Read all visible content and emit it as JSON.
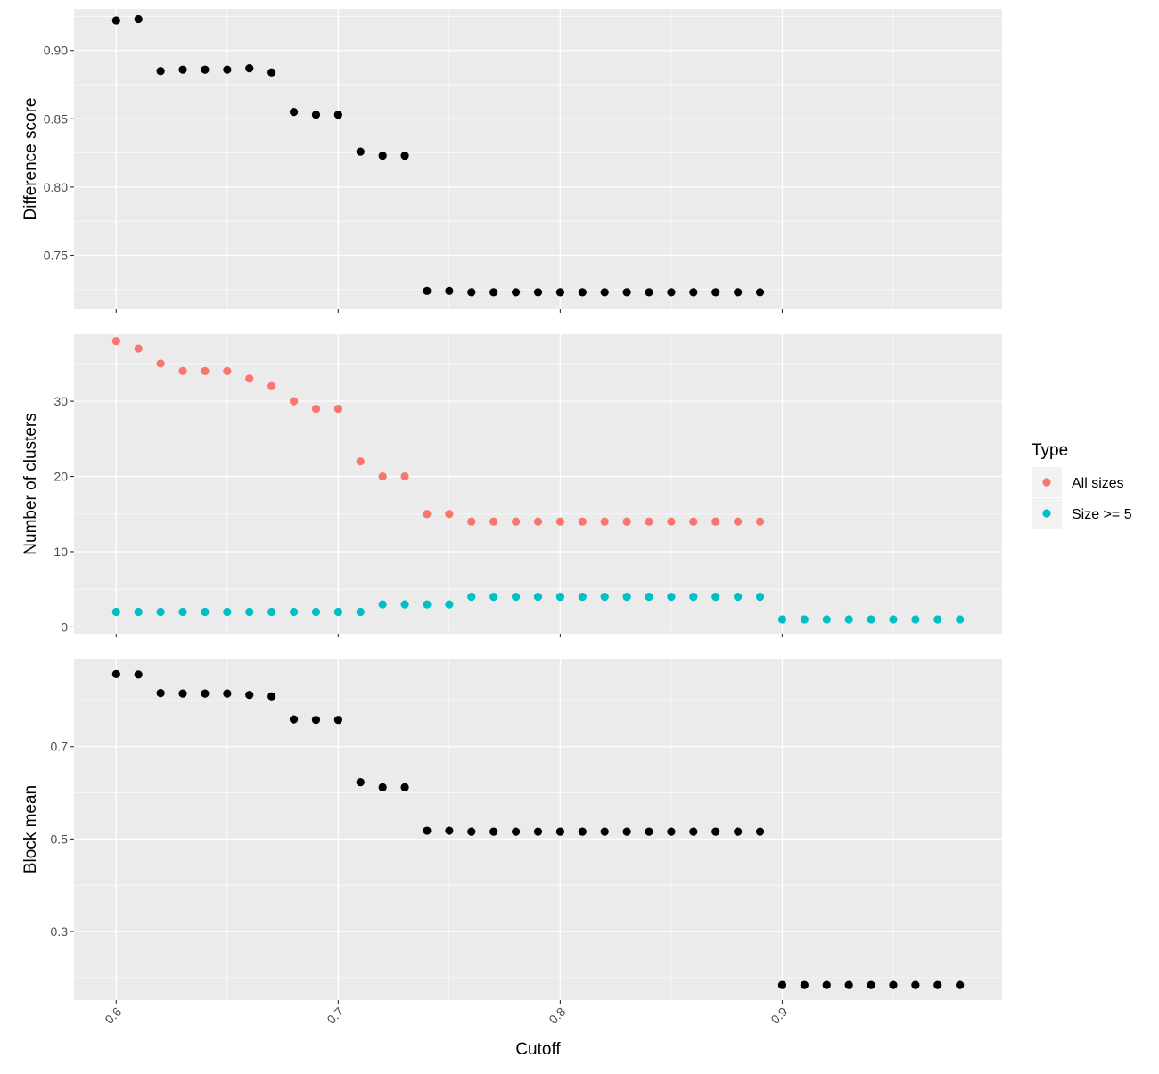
{
  "chart_data": [
    {
      "type": "scatter",
      "panel": "difference",
      "ylabel": "Difference score",
      "yticks": [
        0.75,
        0.8,
        0.85,
        0.9
      ],
      "ytick_labels": [
        "0.75",
        "0.80",
        "0.85",
        "0.90"
      ],
      "ylim": [
        0.7105,
        0.9305
      ],
      "grid": true,
      "series": [
        {
          "color": "#000000",
          "x": [
            0.6,
            0.61,
            0.62,
            0.63,
            0.64,
            0.65,
            0.66,
            0.67,
            0.68,
            0.69,
            0.7,
            0.71,
            0.72,
            0.73,
            0.74,
            0.75,
            0.76,
            0.77,
            0.78,
            0.79,
            0.8,
            0.81,
            0.82,
            0.83,
            0.84,
            0.85,
            0.86,
            0.87,
            0.88,
            0.89
          ],
          "y": [
            0.922,
            0.923,
            0.885,
            0.886,
            0.886,
            0.886,
            0.887,
            0.884,
            0.855,
            0.853,
            0.853,
            0.826,
            0.823,
            0.823,
            0.724,
            0.724,
            0.723,
            0.723,
            0.723,
            0.723,
            0.723,
            0.723,
            0.723,
            0.723,
            0.723,
            0.723,
            0.723,
            0.723,
            0.723,
            0.723
          ]
        }
      ]
    },
    {
      "type": "scatter",
      "panel": "clusters",
      "ylabel": "Number of clusters",
      "yticks": [
        0,
        10,
        20,
        30
      ],
      "ytick_labels": [
        "0",
        "10",
        "20",
        "30"
      ],
      "ylim": [
        -0.9,
        38.9
      ],
      "grid": true,
      "legend": {
        "title": "Type",
        "position": "right"
      },
      "series": [
        {
          "name": "All sizes",
          "color": "#F8766D",
          "x": [
            0.6,
            0.61,
            0.62,
            0.63,
            0.64,
            0.65,
            0.66,
            0.67,
            0.68,
            0.69,
            0.7,
            0.71,
            0.72,
            0.73,
            0.74,
            0.75,
            0.76,
            0.77,
            0.78,
            0.79,
            0.8,
            0.81,
            0.82,
            0.83,
            0.84,
            0.85,
            0.86,
            0.87,
            0.88,
            0.89
          ],
          "y": [
            38,
            37,
            35,
            34,
            34,
            34,
            33,
            32,
            30,
            29,
            29,
            22,
            20,
            20,
            15,
            15,
            14,
            14,
            14,
            14,
            14,
            14,
            14,
            14,
            14,
            14,
            14,
            14,
            14,
            14
          ]
        },
        {
          "name": "Size >= 5",
          "color": "#00BFC4",
          "x": [
            0.6,
            0.61,
            0.62,
            0.63,
            0.64,
            0.65,
            0.66,
            0.67,
            0.68,
            0.69,
            0.7,
            0.71,
            0.72,
            0.73,
            0.74,
            0.75,
            0.76,
            0.77,
            0.78,
            0.79,
            0.8,
            0.81,
            0.82,
            0.83,
            0.84,
            0.85,
            0.86,
            0.87,
            0.88,
            0.89,
            0.9,
            0.91,
            0.92,
            0.93,
            0.94,
            0.95,
            0.96,
            0.97,
            0.98
          ],
          "y": [
            2,
            2,
            2,
            2,
            2,
            2,
            2,
            2,
            2,
            2,
            2,
            2,
            3,
            3,
            3,
            3,
            4,
            4,
            4,
            4,
            4,
            4,
            4,
            4,
            4,
            4,
            4,
            4,
            4,
            4,
            1,
            1,
            1,
            1,
            1,
            1,
            1,
            1,
            1
          ]
        }
      ]
    },
    {
      "type": "scatter",
      "panel": "blockmean",
      "ylabel": "Block mean",
      "xlabel": "Cutoff",
      "yticks": [
        0.3,
        0.5,
        0.7
      ],
      "ytick_labels": [
        "0.3",
        "0.5",
        "0.7"
      ],
      "ylim": [
        0.1515,
        0.8905
      ],
      "xticks": [
        0.6,
        0.7,
        0.8,
        0.9
      ],
      "xtick_labels": [
        "0.6",
        "0.7",
        "0.8",
        "0.9"
      ],
      "xlim": [
        0.581,
        0.999
      ],
      "grid": true,
      "series": [
        {
          "color": "#000000",
          "x": [
            0.6,
            0.61,
            0.62,
            0.63,
            0.64,
            0.65,
            0.66,
            0.67,
            0.68,
            0.69,
            0.7,
            0.71,
            0.72,
            0.73,
            0.74,
            0.75,
            0.76,
            0.77,
            0.78,
            0.79,
            0.8,
            0.81,
            0.82,
            0.83,
            0.84,
            0.85,
            0.86,
            0.87,
            0.88,
            0.89,
            0.9,
            0.91,
            0.92,
            0.93,
            0.94,
            0.95,
            0.96,
            0.97,
            0.98
          ],
          "y": [
            0.857,
            0.856,
            0.816,
            0.815,
            0.815,
            0.815,
            0.812,
            0.809,
            0.759,
            0.758,
            0.758,
            0.623,
            0.612,
            0.612,
            0.518,
            0.518,
            0.516,
            0.516,
            0.516,
            0.516,
            0.516,
            0.516,
            0.516,
            0.516,
            0.516,
            0.516,
            0.516,
            0.516,
            0.516,
            0.516,
            0.184,
            0.184,
            0.184,
            0.184,
            0.184,
            0.184,
            0.184,
            0.184,
            0.184
          ]
        }
      ]
    }
  ]
}
